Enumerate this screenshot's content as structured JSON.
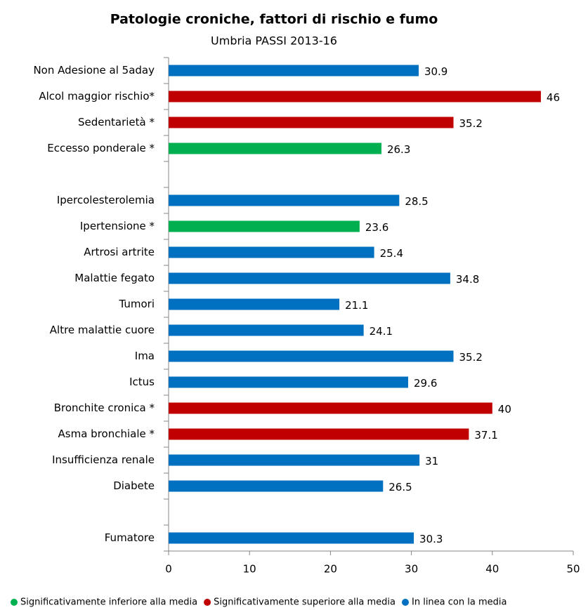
{
  "chart_data": {
    "type": "hbar",
    "title": "Patologie croniche, fattori di rischio e fumo",
    "subtitle": "Umbria PASSI 2013-16",
    "categories": [
      "Non Adesione al 5aday",
      "Alcol maggior rischio*",
      "Sedentarietà *",
      "Eccesso ponderale *",
      null,
      "Ipercolesterolemia",
      "Ipertensione *",
      "Artrosi artrite",
      "Malattie fegato",
      "Tumori",
      "Altre malattie cuore",
      "Ima",
      "Ictus",
      "Bronchite cronica *",
      "Asma bronchiale *",
      "Insufficienza renale",
      "Diabete",
      null,
      "Fumatore"
    ],
    "series": [
      {
        "name": "Significativamente inferiore alla media",
        "color": "#00b050",
        "values": [
          null,
          null,
          null,
          26.3,
          null,
          null,
          23.6,
          null,
          null,
          null,
          null,
          null,
          null,
          null,
          null,
          null,
          null,
          null,
          null
        ]
      },
      {
        "name": "Significativamente superiore alla media",
        "color": "#c00000",
        "values": [
          null,
          46,
          35.2,
          null,
          null,
          null,
          null,
          null,
          null,
          null,
          null,
          null,
          null,
          40,
          37.1,
          null,
          null,
          null,
          null
        ]
      },
      {
        "name": "In linea con la media",
        "color": "#0070c0",
        "values": [
          30.9,
          null,
          null,
          null,
          null,
          28.5,
          null,
          25.4,
          34.8,
          21.1,
          24.1,
          35.2,
          29.6,
          null,
          null,
          31,
          26.5,
          null,
          30.3
        ]
      }
    ],
    "xlim": [
      0,
      50
    ],
    "xticks": [
      0,
      10,
      20,
      30,
      40,
      50
    ]
  }
}
